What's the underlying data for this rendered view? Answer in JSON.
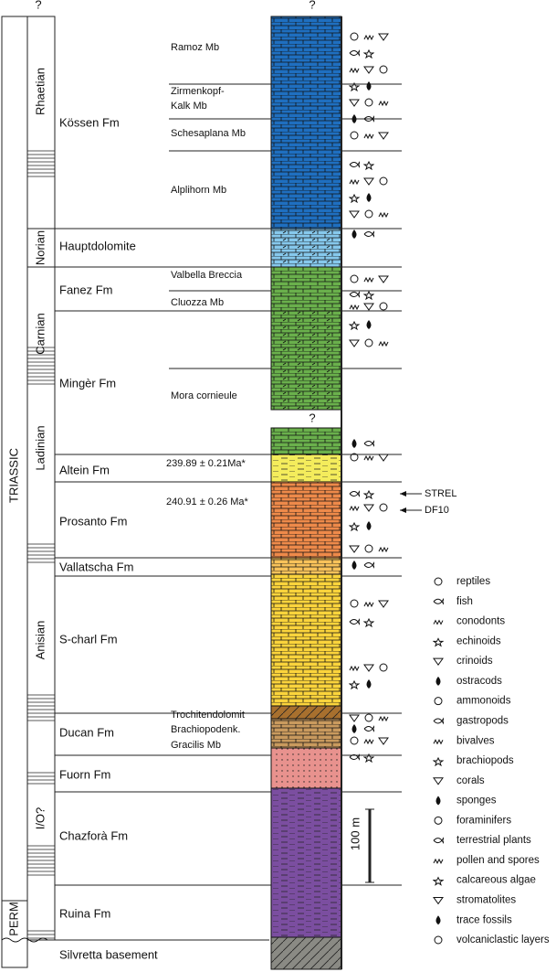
{
  "question_marks": [
    "?",
    "?",
    "?"
  ],
  "systems": [
    "TRIASSIC",
    "PERM"
  ],
  "stages": [
    "Rhaetian",
    "Norian",
    "Carnian",
    "Ladinian",
    "Anisian",
    "I/O?"
  ],
  "formations": [
    "Kössen Fm",
    "Hauptdolomite",
    "Fanez Fm",
    "Mingèr Fm",
    "Altein Fm",
    "Prosanto Fm",
    "Vallatscha Fm",
    "S-charl Fm",
    "Ducan Fm",
    "Fuorn Fm",
    "Chazforà Fm",
    "Ruina Fm",
    "Silvretta basement"
  ],
  "members": [
    "Ramoz Mb",
    "Zirmenkopf-",
    "Kalk Mb",
    "Schesaplana Mb",
    "Alplihorn Mb",
    "Valbella Breccia",
    "Cluozza Mb",
    "Mora cornieule",
    "Trochitendolomit",
    "Brachiopodenk.",
    "Gracilis Mb"
  ],
  "ages": [
    "239.89 ± 0.21Ma*",
    "240.91 ± 0.26  Ma*"
  ],
  "samples": [
    "STREL",
    "DF10"
  ],
  "scale_label": "100 m",
  "legend": [
    "reptiles",
    "fish",
    "conodonts",
    "echinoids",
    "crinoids",
    "ostracods",
    "ammonoids",
    "gastropods",
    "bivalves",
    "brachiopods",
    "corals",
    "sponges",
    "foraminifers",
    "terrestrial plants",
    "pollen and spores",
    "calcareous algae",
    "stromatolites",
    "trace fossils",
    "volcaniclastic layers"
  ]
}
